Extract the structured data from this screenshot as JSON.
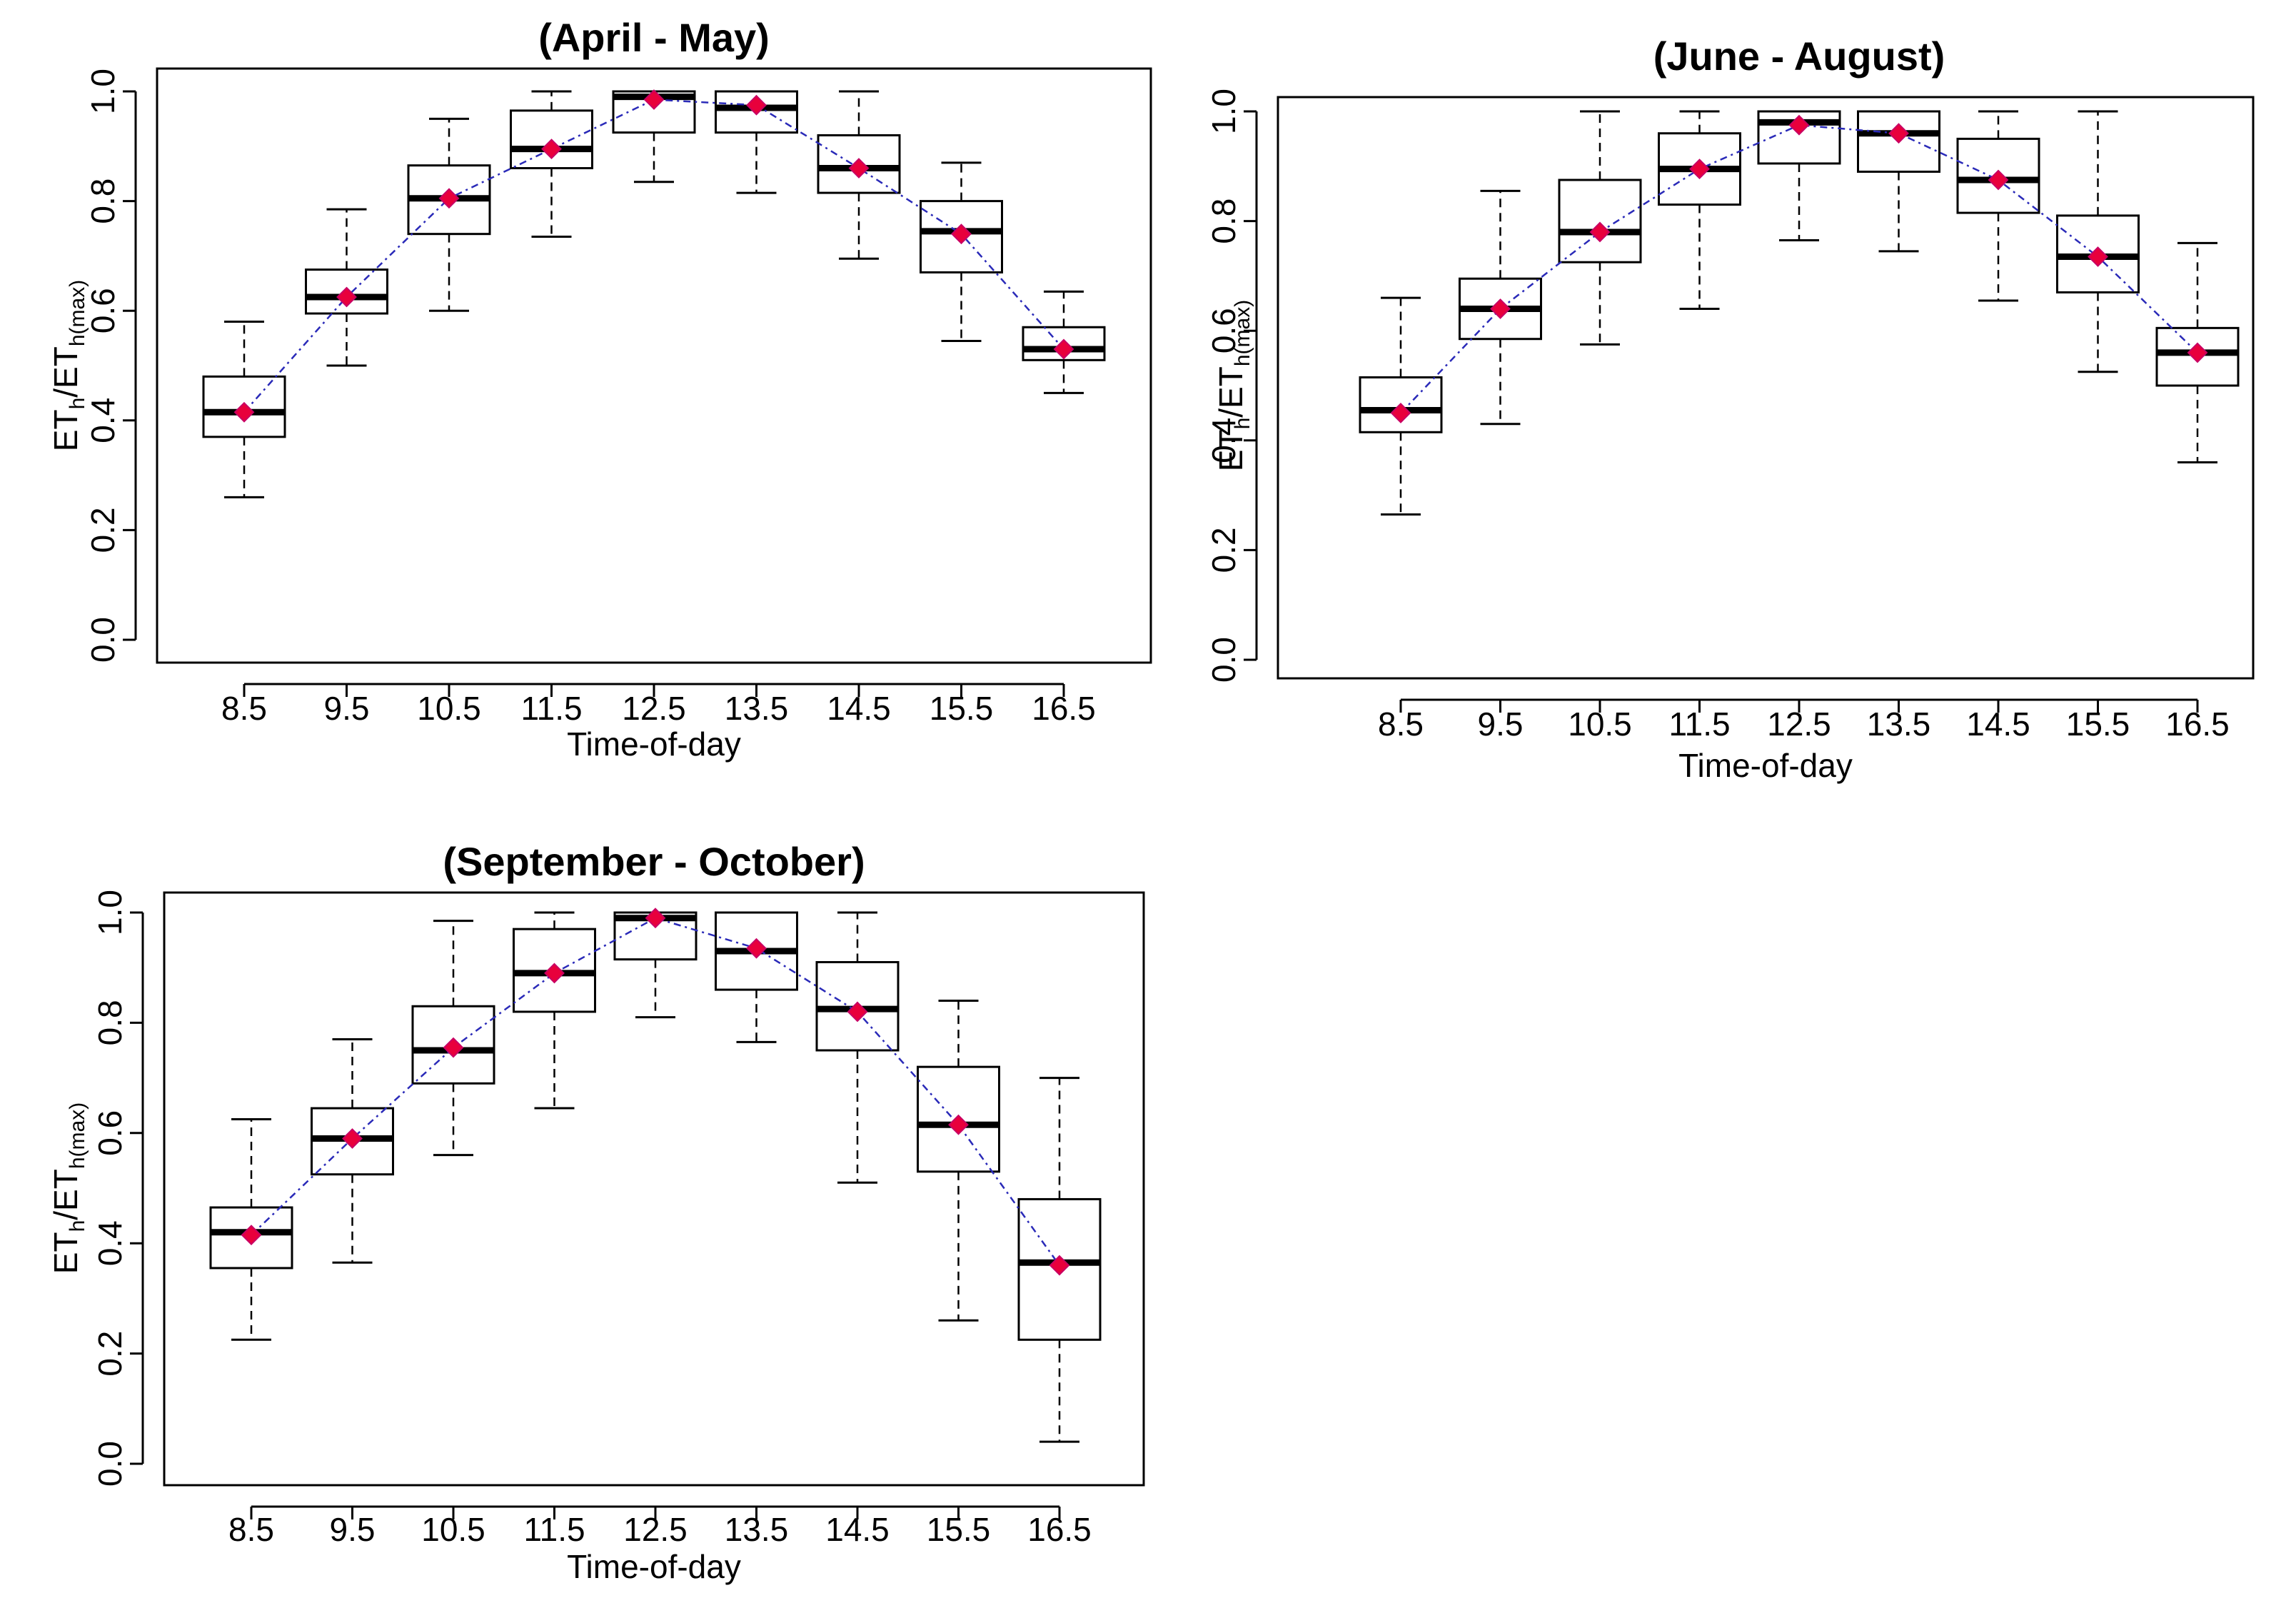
{
  "chart_data": [
    {
      "type": "boxplot",
      "title": "(April - May)",
      "xlabel": "Time-of-day",
      "ylabel": {
        "base": "ET",
        "sub1": "h",
        "slash": "/ET",
        "sub2": "h(max)"
      },
      "ylim": [
        0,
        1
      ],
      "yticks": [
        "0.0",
        "0.2",
        "0.4",
        "0.6",
        "0.8",
        "1.0"
      ],
      "categories": [
        "8.5",
        "9.5",
        "10.5",
        "11.5",
        "12.5",
        "13.5",
        "14.5",
        "15.5",
        "16.5"
      ],
      "boxes": [
        {
          "whisker_low": 0.26,
          "q1": 0.37,
          "median": 0.415,
          "q3": 0.48,
          "whisker_high": 0.58,
          "mean": 0.415
        },
        {
          "whisker_low": 0.5,
          "q1": 0.595,
          "median": 0.625,
          "q3": 0.675,
          "whisker_high": 0.785,
          "mean": 0.625
        },
        {
          "whisker_low": 0.6,
          "q1": 0.74,
          "median": 0.805,
          "q3": 0.865,
          "whisker_high": 0.95,
          "mean": 0.805
        },
        {
          "whisker_low": 0.735,
          "q1": 0.86,
          "median": 0.895,
          "q3": 0.965,
          "whisker_high": 1.0,
          "mean": 0.895
        },
        {
          "whisker_low": 0.835,
          "q1": 0.925,
          "median": 0.99,
          "q3": 1.0,
          "whisker_high": 1.0,
          "mean": 0.985
        },
        {
          "whisker_low": 0.815,
          "q1": 0.925,
          "median": 0.97,
          "q3": 1.0,
          "whisker_high": 1.0,
          "mean": 0.975
        },
        {
          "whisker_low": 0.695,
          "q1": 0.815,
          "median": 0.86,
          "q3": 0.92,
          "whisker_high": 1.0,
          "mean": 0.86
        },
        {
          "whisker_low": 0.545,
          "q1": 0.67,
          "median": 0.745,
          "q3": 0.8,
          "whisker_high": 0.87,
          "mean": 0.74
        },
        {
          "whisker_low": 0.45,
          "q1": 0.51,
          "median": 0.53,
          "q3": 0.57,
          "whisker_high": 0.635,
          "mean": 0.53
        }
      ]
    },
    {
      "type": "boxplot",
      "title": "(June - August)",
      "xlabel": "Time-of-day",
      "ylabel": {
        "base": "ET",
        "sub1": "h",
        "slash": "/ET",
        "sub2": "h(max)"
      },
      "ylim": [
        0,
        1
      ],
      "yticks": [
        "0.0",
        "0.2",
        "0.4",
        "0.6",
        "0.8",
        "1.0"
      ],
      "categories": [
        "8.5",
        "9.5",
        "10.5",
        "11.5",
        "12.5",
        "13.5",
        "14.5",
        "15.5",
        "16.5"
      ],
      "boxes": [
        {
          "whisker_low": 0.265,
          "q1": 0.415,
          "median": 0.455,
          "q3": 0.515,
          "whisker_high": 0.66,
          "mean": 0.45
        },
        {
          "whisker_low": 0.43,
          "q1": 0.585,
          "median": 0.64,
          "q3": 0.695,
          "whisker_high": 0.855,
          "mean": 0.64
        },
        {
          "whisker_low": 0.575,
          "q1": 0.725,
          "median": 0.78,
          "q3": 0.875,
          "whisker_high": 1.0,
          "mean": 0.78
        },
        {
          "whisker_low": 0.64,
          "q1": 0.83,
          "median": 0.895,
          "q3": 0.96,
          "whisker_high": 1.0,
          "mean": 0.895
        },
        {
          "whisker_low": 0.765,
          "q1": 0.905,
          "median": 0.98,
          "q3": 1.0,
          "whisker_high": 1.0,
          "mean": 0.975
        },
        {
          "whisker_low": 0.745,
          "q1": 0.89,
          "median": 0.96,
          "q3": 1.0,
          "whisker_high": 1.0,
          "mean": 0.96
        },
        {
          "whisker_low": 0.655,
          "q1": 0.815,
          "median": 0.875,
          "q3": 0.95,
          "whisker_high": 1.0,
          "mean": 0.875
        },
        {
          "whisker_low": 0.525,
          "q1": 0.67,
          "median": 0.735,
          "q3": 0.81,
          "whisker_high": 1.0,
          "mean": 0.735
        },
        {
          "whisker_low": 0.36,
          "q1": 0.5,
          "median": 0.56,
          "q3": 0.605,
          "whisker_high": 0.76,
          "mean": 0.56
        }
      ]
    },
    {
      "type": "boxplot",
      "title": "(September - October)",
      "xlabel": "Time-of-day",
      "ylabel": {
        "base": "ET",
        "sub1": "h",
        "slash": "/ET",
        "sub2": "h(max)"
      },
      "ylim": [
        0,
        1
      ],
      "yticks": [
        "0.0",
        "0.2",
        "0.4",
        "0.6",
        "0.8",
        "1.0"
      ],
      "categories": [
        "8.5",
        "9.5",
        "10.5",
        "11.5",
        "12.5",
        "13.5",
        "14.5",
        "15.5",
        "16.5"
      ],
      "boxes": [
        {
          "whisker_low": 0.225,
          "q1": 0.355,
          "median": 0.42,
          "q3": 0.465,
          "whisker_high": 0.625,
          "mean": 0.415
        },
        {
          "whisker_low": 0.365,
          "q1": 0.525,
          "median": 0.59,
          "q3": 0.645,
          "whisker_high": 0.77,
          "mean": 0.59
        },
        {
          "whisker_low": 0.56,
          "q1": 0.69,
          "median": 0.75,
          "q3": 0.83,
          "whisker_high": 0.985,
          "mean": 0.755
        },
        {
          "whisker_low": 0.645,
          "q1": 0.82,
          "median": 0.89,
          "q3": 0.97,
          "whisker_high": 1.0,
          "mean": 0.89
        },
        {
          "whisker_low": 0.81,
          "q1": 0.915,
          "median": 0.99,
          "q3": 1.0,
          "whisker_high": 1.0,
          "mean": 0.99
        },
        {
          "whisker_low": 0.765,
          "q1": 0.86,
          "median": 0.93,
          "q3": 1.0,
          "whisker_high": 1.0,
          "mean": 0.935
        },
        {
          "whisker_low": 0.51,
          "q1": 0.75,
          "median": 0.825,
          "q3": 0.91,
          "whisker_high": 1.0,
          "mean": 0.82
        },
        {
          "whisker_low": 0.26,
          "q1": 0.53,
          "median": 0.615,
          "q3": 0.72,
          "whisker_high": 0.84,
          "mean": 0.615
        },
        {
          "whisker_low": 0.04,
          "q1": 0.225,
          "median": 0.365,
          "q3": 0.48,
          "whisker_high": 0.7,
          "mean": 0.36
        }
      ]
    }
  ],
  "colors": {
    "box_edge": "#000000",
    "median": "#000000",
    "whisker": "#000000",
    "mean_marker": "#e8003c",
    "mean_marker_edge": "#c80064",
    "trend_line": "#2a2ab8"
  }
}
